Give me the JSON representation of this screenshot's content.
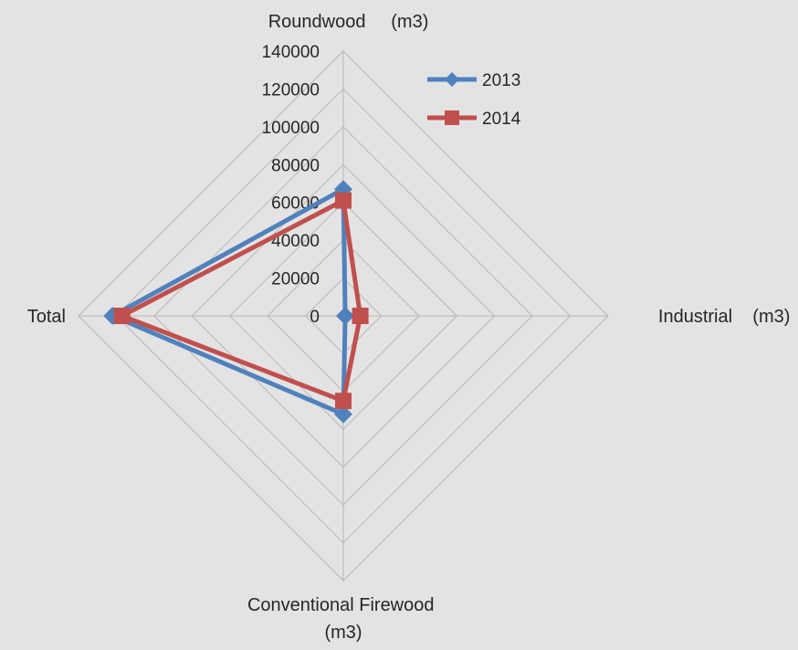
{
  "chart_data": {
    "type": "radar",
    "categories": [
      "Roundwood     (m3)",
      "Industrial    (m3)",
      "Conventional Firewood (m3)",
      "Total"
    ],
    "axis_label_lines": [
      [
        "Roundwood     (m3)"
      ],
      [
        "Industrial    (m3)"
      ],
      [
        "Conventional Firewood",
        "(m3)"
      ],
      [
        "Total"
      ]
    ],
    "series": [
      {
        "name": "2013",
        "values": [
          67000,
          1000,
          52000,
          122000
        ],
        "color": "#4f81bd",
        "marker": "diamond"
      },
      {
        "name": "2014",
        "values": [
          61000,
          9000,
          45000,
          117000
        ],
        "color": "#c0504d",
        "marker": "square"
      }
    ],
    "r_range": [
      0,
      140000
    ],
    "r_ticks": [
      "0",
      "20000",
      "40000",
      "60000",
      "80000",
      "100000",
      "120000",
      "140000"
    ],
    "grid": true,
    "legend_position": "top-right"
  }
}
